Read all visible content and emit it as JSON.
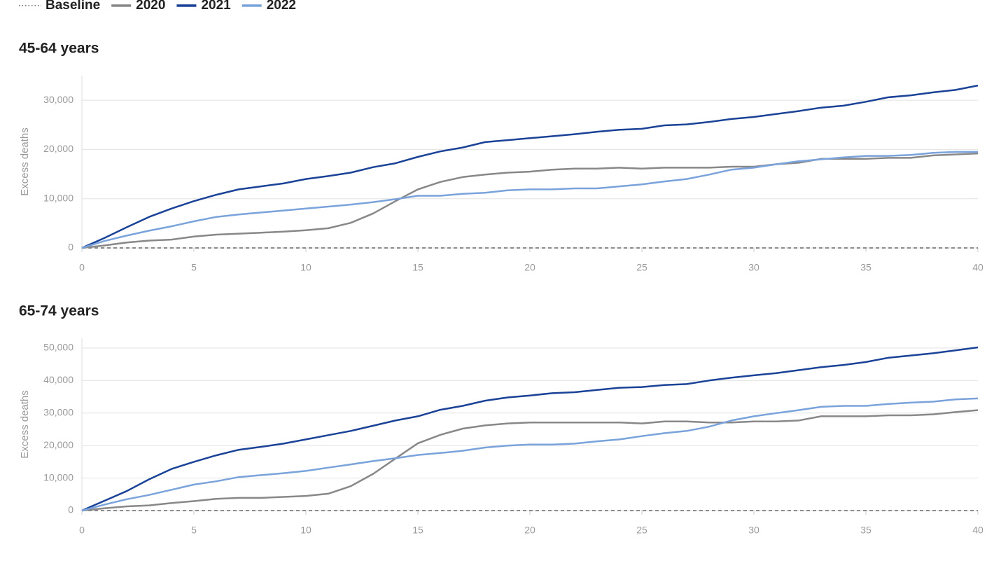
{
  "baseline_label": "Baseline",
  "chart_data": [
    {
      "type": "line",
      "title": "45-64 years",
      "ylabel": "Excess deaths",
      "x": [
        0,
        1,
        2,
        3,
        4,
        5,
        6,
        7,
        8,
        9,
        10,
        11,
        12,
        13,
        14,
        15,
        16,
        17,
        18,
        19,
        20,
        21,
        22,
        23,
        24,
        25,
        26,
        27,
        28,
        29,
        30,
        31,
        32,
        33,
        34,
        35,
        36,
        37,
        38,
        39,
        40
      ],
      "xlim": [
        0,
        40
      ],
      "xticks": [
        0,
        5,
        10,
        15,
        20,
        25,
        30,
        35,
        40
      ],
      "ylim": [
        0,
        35000
      ],
      "yticks": [
        0,
        {
          "value": 10000,
          "label": "10,000"
        },
        {
          "value": 20000,
          "label": "20,000"
        },
        {
          "value": 30000,
          "label": "30,000"
        }
      ],
      "grid": true,
      "baseline": 0,
      "series": [
        {
          "name": "2020",
          "color": "#888888",
          "values": [
            0,
            500,
            1100,
            1500,
            1700,
            2300,
            2700,
            2900,
            3100,
            3300,
            3600,
            4000,
            5100,
            7000,
            9500,
            11900,
            13400,
            14400,
            14900,
            15300,
            15500,
            15900,
            16100,
            16100,
            16300,
            16100,
            16300,
            16300,
            16300,
            16500,
            16500,
            17000,
            17300,
            18100,
            18100,
            18100,
            18300,
            18300,
            18800,
            19000,
            19200
          ]
        },
        {
          "name": "2021",
          "color": "#1a4296",
          "values": [
            0,
            2000,
            4200,
            6300,
            8000,
            9500,
            10800,
            11900,
            12500,
            13100,
            14000,
            14600,
            15300,
            16400,
            17200,
            18500,
            19600,
            20400,
            21500,
            21900,
            22300,
            22700,
            23100,
            23600,
            24000,
            24200,
            24900,
            25100,
            25600,
            26200,
            26600,
            27200,
            27800,
            28500,
            28900,
            29700,
            30600,
            31000,
            31600,
            32100,
            33000
          ]
        },
        {
          "name": "2022",
          "color": "#7aa3dc",
          "values": [
            0,
            1400,
            2500,
            3500,
            4400,
            5400,
            6300,
            6800,
            7200,
            7600,
            8000,
            8400,
            8800,
            9300,
            9900,
            10600,
            10600,
            11000,
            11200,
            11700,
            11900,
            11900,
            12100,
            12100,
            12500,
            12900,
            13500,
            14000,
            14900,
            15900,
            16300,
            17000,
            17600,
            18000,
            18400,
            18700,
            18700,
            18900,
            19300,
            19500,
            19500
          ]
        }
      ]
    },
    {
      "type": "line",
      "title": "65-74 years",
      "ylabel": "Excess deaths",
      "x": [
        0,
        1,
        2,
        3,
        4,
        5,
        6,
        7,
        8,
        9,
        10,
        11,
        12,
        13,
        14,
        15,
        16,
        17,
        18,
        19,
        20,
        21,
        22,
        23,
        24,
        25,
        26,
        27,
        28,
        29,
        30,
        31,
        32,
        33,
        34,
        35,
        36,
        37,
        38,
        39,
        40
      ],
      "xlim": [
        0,
        40
      ],
      "xticks": [
        0,
        5,
        10,
        15,
        20,
        25,
        30,
        35,
        40
      ],
      "ylim": [
        0,
        53000
      ],
      "yticks": [
        0,
        {
          "value": 10000,
          "label": "10,000"
        },
        {
          "value": 20000,
          "label": "20,000"
        },
        {
          "value": 30000,
          "label": "30,000"
        },
        {
          "value": 40000,
          "label": "40,000"
        },
        {
          "value": 50000,
          "label": "50,000"
        }
      ],
      "grid": true,
      "baseline": 0,
      "series": [
        {
          "name": "2020",
          "color": "#888888",
          "values": [
            0,
            700,
            1300,
            1600,
            2300,
            2900,
            3600,
            3900,
            3900,
            4200,
            4500,
            5200,
            7500,
            11300,
            16000,
            20700,
            23300,
            25200,
            26200,
            26800,
            27100,
            27100,
            27100,
            27100,
            27100,
            26800,
            27400,
            27400,
            27100,
            27100,
            27400,
            27400,
            27700,
            29000,
            29000,
            29000,
            29300,
            29300,
            29600,
            30300,
            30900
          ]
        },
        {
          "name": "2021",
          "color": "#1a4296",
          "values": [
            0,
            3000,
            6000,
            9600,
            12800,
            15000,
            17000,
            18700,
            19600,
            20600,
            21900,
            23200,
            24500,
            26100,
            27700,
            29000,
            31000,
            32200,
            33800,
            34800,
            35400,
            36100,
            36400,
            37100,
            37800,
            38000,
            38600,
            38900,
            40000,
            40900,
            41600,
            42300,
            43200,
            44100,
            44800,
            45700,
            47000,
            47700,
            48400,
            49300,
            50200
          ]
        },
        {
          "name": "2022",
          "color": "#7aa3dc",
          "values": [
            0,
            1800,
            3500,
            4800,
            6400,
            8000,
            9000,
            10300,
            10900,
            11500,
            12200,
            13200,
            14200,
            15200,
            16100,
            17100,
            17700,
            18400,
            19400,
            20000,
            20300,
            20300,
            20600,
            21300,
            21900,
            22900,
            23800,
            24500,
            25800,
            27700,
            29000,
            30000,
            30900,
            31900,
            32200,
            32200,
            32800,
            33200,
            33500,
            34200,
            34500
          ]
        }
      ]
    }
  ]
}
